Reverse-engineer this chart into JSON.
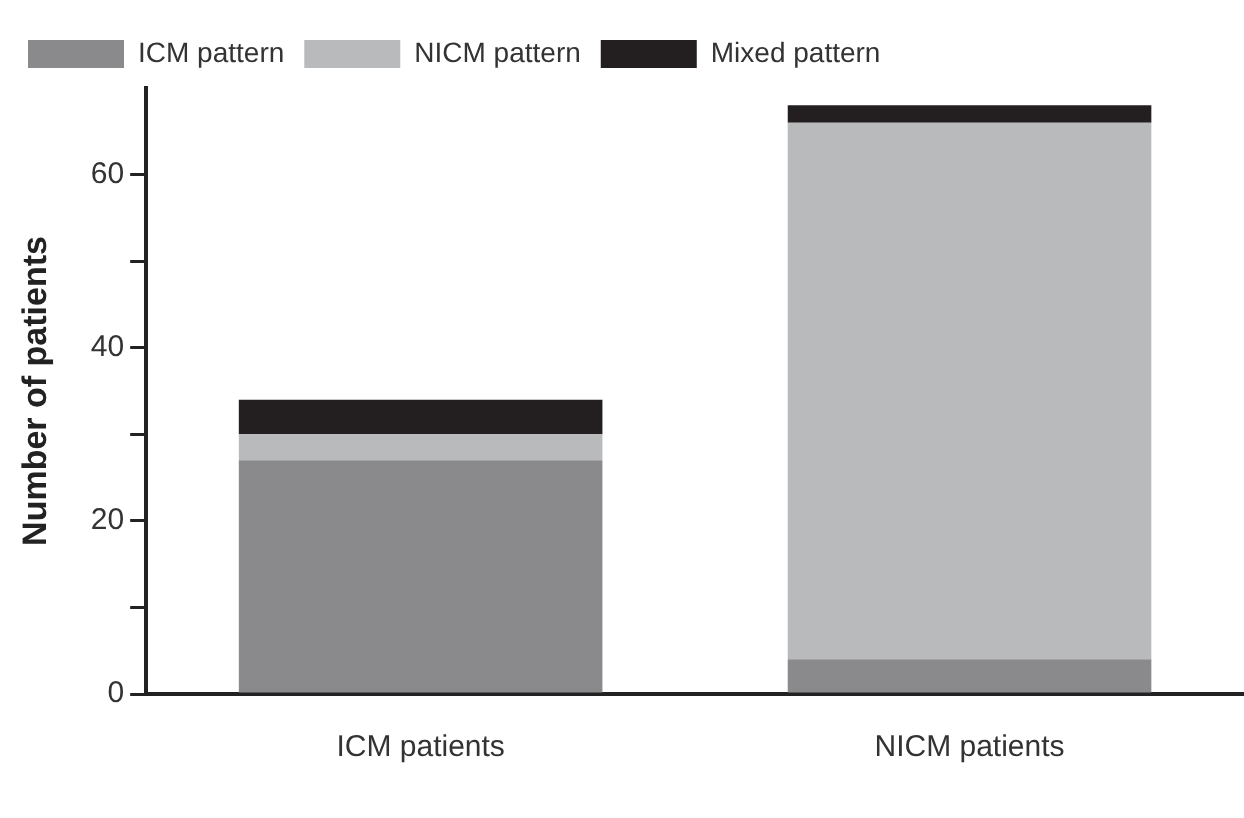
{
  "chart_data": {
    "type": "bar",
    "ylabel": "Number of patients",
    "categories": [
      "ICM patients",
      "NICM patients"
    ],
    "stacked": true,
    "series": [
      {
        "name": "ICM pattern",
        "color": "#8a8a8c",
        "values": [
          27,
          4
        ]
      },
      {
        "name": "NICM pattern",
        "color": "#b9babc",
        "values": [
          3,
          62
        ]
      },
      {
        "name": "Mixed pattern",
        "color": "#231f20",
        "values": [
          4,
          2
        ]
      }
    ],
    "ylim": [
      0,
      70
    ],
    "yticks": [
      0,
      {
        "value": 10,
        "label": null
      },
      20,
      {
        "value": 30,
        "label": null
      },
      40,
      {
        "value": 50,
        "label": null
      },
      60
    ],
    "grid": false,
    "legend": "top left"
  }
}
